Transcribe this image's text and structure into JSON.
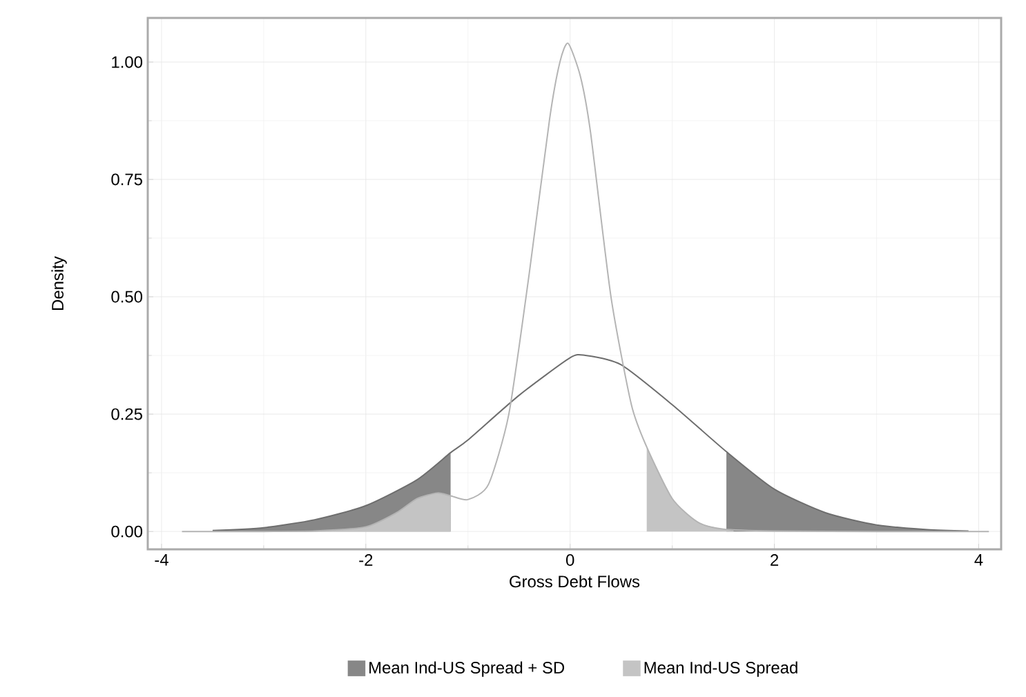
{
  "chart_data": {
    "type": "line",
    "xlabel": "Gross Debt Flows",
    "ylabel": "Density",
    "xlim": [
      -4.135,
      4.22
    ],
    "ylim": [
      -0.038,
      1.094
    ],
    "xticks": [
      -4,
      -2,
      0,
      2,
      4
    ],
    "yticks": [
      {
        "value": 0,
        "label": "0.00"
      },
      {
        "value": 0.25,
        "label": "0.25"
      },
      {
        "value": 0.5,
        "label": "0.50"
      },
      {
        "value": 0.75,
        "label": "0.75"
      },
      {
        "value": 1,
        "label": "1.00"
      }
    ],
    "grid": true,
    "legend": "bottom",
    "series": [
      {
        "name": "Mean Ind-US Spread  +  SD",
        "type": "area",
        "color": "#878787",
        "x": [
          -3.5,
          -3,
          -2.5,
          -2,
          -1.5,
          -1.17,
          0,
          1.53,
          2,
          2.5,
          3,
          3.5,
          3.9
        ],
        "values": [
          0.002,
          0.008,
          0.025,
          0.055,
          0.11,
          0.168,
          null,
          0.17,
          0.09,
          0.04,
          0.014,
          0.004,
          0.001
        ]
      },
      {
        "name": "Mean Ind-US Spread",
        "type": "area",
        "color": "#c4c4c4",
        "x": [
          -2.5,
          -2,
          -1.7,
          -1.5,
          -1.3,
          -1.17,
          0,
          0.75,
          1,
          1.25,
          1.5,
          1.6
        ],
        "values": [
          0.001,
          0.01,
          0.04,
          0.07,
          0.082,
          0.076,
          null,
          0.18,
          0.07,
          0.02,
          0.005,
          0.002
        ]
      },
      {
        "color": "#6e6e6e",
        "x": [
          -3.5,
          -3,
          -2.5,
          -2,
          -1.5,
          -1.17,
          -1,
          -0.5,
          0,
          0.15,
          0.5,
          1,
          1.53,
          2,
          2.5,
          3,
          3.5,
          3.9
        ],
        "values": [
          0.002,
          0.008,
          0.025,
          0.055,
          0.11,
          0.168,
          0.195,
          0.29,
          0.37,
          0.375,
          0.355,
          0.27,
          0.17,
          0.09,
          0.04,
          0.014,
          0.004,
          0.001
        ]
      },
      {
        "color": "#b4b4b4",
        "x": [
          -3.8,
          -3,
          -2.5,
          -2,
          -1.7,
          -1.5,
          -1.3,
          -1.17,
          -1,
          -0.8,
          -0.6,
          -0.4,
          -0.2,
          -0.1,
          -0.02,
          0.1,
          0.2,
          0.4,
          0.6,
          0.75,
          1,
          1.25,
          1.5,
          2,
          3,
          4.1
        ],
        "values": [
          0,
          0,
          0.001,
          0.01,
          0.04,
          0.07,
          0.082,
          0.076,
          0.068,
          0.1,
          0.25,
          0.55,
          0.88,
          1.0,
          1.04,
          0.97,
          0.85,
          0.5,
          0.27,
          0.18,
          0.07,
          0.02,
          0.005,
          0.001,
          0,
          0
        ]
      }
    ]
  }
}
